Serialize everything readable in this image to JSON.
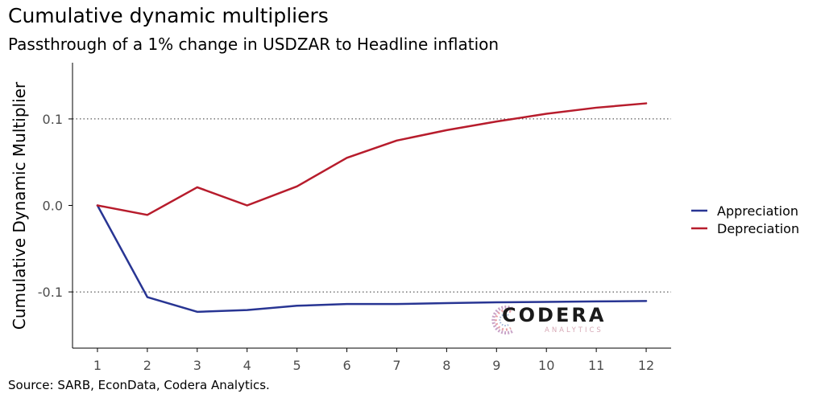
{
  "title": "Cumulative dynamic multipliers",
  "subtitle": "Passthrough of a 1% change in USDZAR to Headline inflation",
  "source": "Source: SARB, EconData, Codera Analytics.",
  "logo": {
    "name": "CODERA",
    "tagline": "ANALYTICS"
  },
  "chart_data": {
    "type": "line",
    "ylabel": "Cumulative Dynamic Multiplier",
    "x": [
      1,
      2,
      3,
      4,
      5,
      6,
      7,
      8,
      9,
      10,
      11,
      12
    ],
    "xlim": [
      0.5,
      12.5
    ],
    "ylim": [
      -0.165,
      0.165
    ],
    "yticks": [
      0.1,
      0.0,
      -0.1
    ],
    "ytick_labels": [
      "0.1",
      "0.0",
      "-0.1"
    ],
    "gridlines": "dotted horizontal at y = 0.1 and y = -0.1",
    "legend_position": "right",
    "series": [
      {
        "name": "Appreciation",
        "color": "#283593",
        "values": [
          0.0,
          -0.106,
          -0.123,
          -0.121,
          -0.116,
          -0.114,
          -0.114,
          -0.113,
          -0.112,
          -0.1115,
          -0.111,
          -0.1105
        ]
      },
      {
        "name": "Depreciation",
        "color": "#b71c2c",
        "values": [
          0.0,
          -0.011,
          0.021,
          0.0,
          0.022,
          0.055,
          0.075,
          0.087,
          0.097,
          0.106,
          0.113,
          0.118
        ]
      }
    ]
  }
}
